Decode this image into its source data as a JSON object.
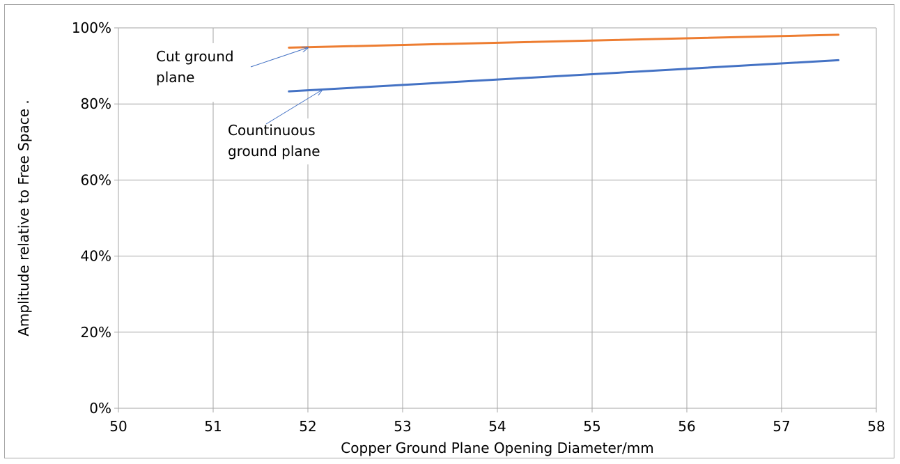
{
  "chart_data": {
    "type": "line",
    "title": "",
    "xlabel": "Copper Ground Plane Opening Diameter/mm",
    "ylabel": "Amplitude relative to Free Space .",
    "xlim": [
      50,
      58
    ],
    "ylim": [
      0,
      1
    ],
    "x_ticks": [
      50,
      51,
      52,
      53,
      54,
      55,
      56,
      57,
      58
    ],
    "y_ticks": [
      0,
      0.2,
      0.4,
      0.6,
      0.8,
      1.0
    ],
    "y_tick_labels": [
      "0%",
      "20%",
      "40%",
      "60%",
      "80%",
      "100%"
    ],
    "grid": true,
    "legend": "none",
    "series": [
      {
        "color": "#ed7d31",
        "x": [
          51.8,
          57.6
        ],
        "y": [
          0.948,
          0.982
        ]
      },
      {
        "color": "#4472c4",
        "x": [
          51.8,
          57.6
        ],
        "y": [
          0.833,
          0.915
        ]
      }
    ],
    "annotations": [
      {
        "lines": [
          "Cut ground",
          "plane"
        ],
        "arrow_to": {
          "x": 52.0,
          "y": 0.948
        }
      },
      {
        "lines": [
          "Countinuous",
          "ground plane"
        ],
        "arrow_to": {
          "x": 52.15,
          "y": 0.837
        }
      }
    ]
  }
}
